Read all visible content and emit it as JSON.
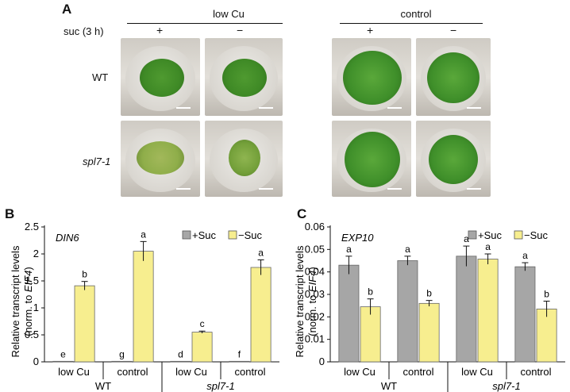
{
  "panels": {
    "a": "A",
    "b": "B",
    "c": "C"
  },
  "figure_a": {
    "suc_label": "suc (3 h)",
    "group_low": "low Cu",
    "group_control": "control",
    "plus": "+",
    "minus": "−",
    "row_wt": "WT",
    "row_spl": "spl7-1"
  },
  "colors": {
    "plus_suc": "#a6a6a6",
    "minus_suc": "#f7ee8f",
    "seedling_green": "#3f8f2a",
    "seedling_pale": "#8fae4a"
  },
  "chart_data": [
    {
      "type": "bar",
      "gene": "DIN6",
      "ylabel_line1": "Relative transcript levels",
      "ylabel_line2_pre": "(norm. to ",
      "ylabel_line2_gene": "EIF4",
      "ylabel_line2_post": ")",
      "ylim": [
        0,
        2.5
      ],
      "yticks": [
        "0",
        "0.5",
        "1",
        "1.5",
        "2",
        "2.5"
      ],
      "categories": [
        "low Cu",
        "control",
        "low Cu",
        "control"
      ],
      "groups": [
        "WT",
        "spl7-1"
      ],
      "series": [
        {
          "name": "+Suc",
          "values": [
            0.01,
            0.01,
            0.01,
            0.01
          ],
          "errors": [
            0.0,
            0.0,
            0.0,
            0.0
          ],
          "letters": [
            "e",
            "g",
            "d",
            "f"
          ]
        },
        {
          "name": "−Suc",
          "values": [
            1.41,
            2.05,
            0.55,
            1.75
          ],
          "errors": [
            0.08,
            0.18,
            0.02,
            0.14
          ],
          "letters": [
            "b",
            "a",
            "c",
            "a"
          ]
        }
      ],
      "legend": "top-right"
    },
    {
      "type": "bar",
      "gene": "EXP10",
      "ylabel_line1": "Relative transcript levels",
      "ylabel_line2_pre": "(norm. to ",
      "ylabel_line2_gene": "EIF4",
      "ylabel_line2_post": ")",
      "ylim": [
        0,
        0.06
      ],
      "yticks": [
        "0",
        "0.01",
        "0.02",
        "0.03",
        "0.04",
        "0.05",
        "0.06"
      ],
      "categories": [
        "low Cu",
        "control",
        "low Cu",
        "control"
      ],
      "groups": [
        "WT",
        "spl7-1"
      ],
      "series": [
        {
          "name": "+Suc",
          "values": [
            0.043,
            0.045,
            0.047,
            0.0423
          ],
          "errors": [
            0.004,
            0.002,
            0.0045,
            0.0018
          ],
          "letters": [
            "a",
            "a",
            "a",
            "a"
          ]
        },
        {
          "name": "−Suc",
          "values": [
            0.0245,
            0.026,
            0.0457,
            0.0235
          ],
          "errors": [
            0.0035,
            0.0013,
            0.0023,
            0.0035
          ],
          "letters": [
            "b",
            "b",
            "a",
            "b"
          ]
        }
      ],
      "legend": "top-right"
    }
  ]
}
